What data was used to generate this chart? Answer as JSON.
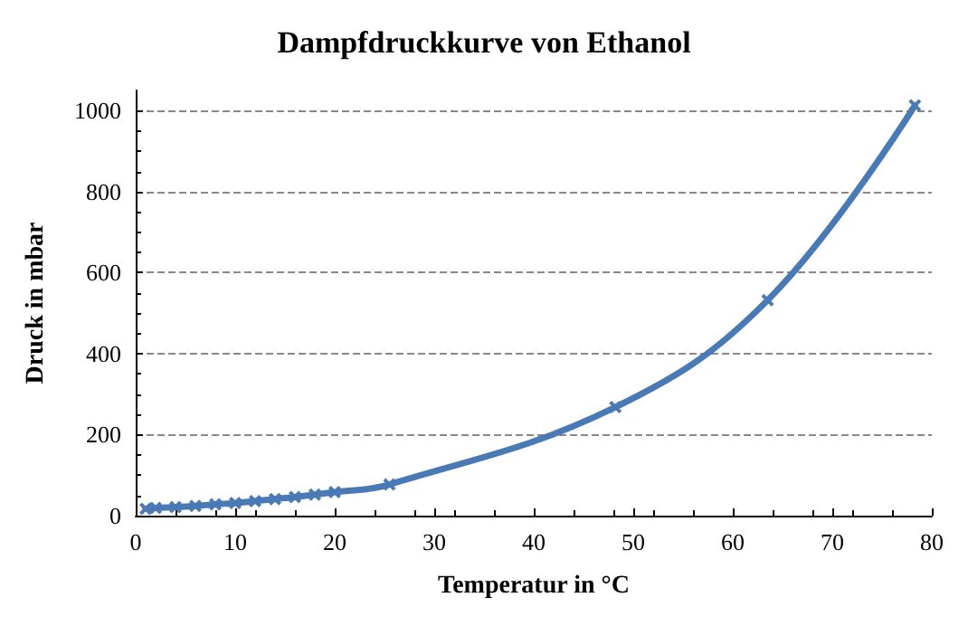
{
  "chart_data": {
    "type": "line",
    "title": "Dampfdruckkurve von Ethanol",
    "xlabel": "Temperatur in °C",
    "ylabel": "Druck in mbar",
    "x": [
      1,
      2,
      4,
      6,
      8,
      10,
      12,
      14,
      16,
      18,
      20,
      25.5,
      48.2,
      63.5,
      78.3
    ],
    "series": [
      {
        "color": "#4a7ab5",
        "values": [
          17,
          19,
          21,
          24,
          28,
          31,
          36,
          41,
          46,
          52,
          58,
          77,
          268,
          532,
          1013
        ]
      }
    ],
    "xlim": [
      0,
      80
    ],
    "xticks": [
      0,
      10,
      20,
      30,
      40,
      50,
      60,
      70,
      80
    ],
    "ylim": [
      0,
      1050
    ],
    "yticks": [
      0,
      200,
      400,
      600,
      800,
      1000
    ],
    "grid": "y",
    "marker": "cross",
    "line_style": "solid"
  }
}
